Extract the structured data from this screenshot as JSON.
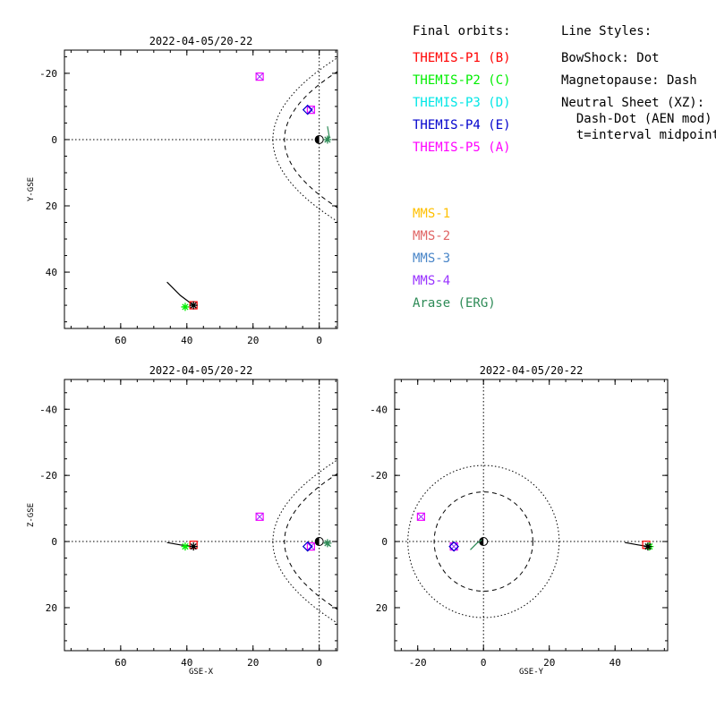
{
  "colors": {
    "themis_p1": "#ff0000",
    "themis_p2": "#00ee00",
    "themis_p3": "#00e6e6",
    "themis_p4": "#0000cc",
    "themis_p5": "#ff00ff",
    "mms_1": "#ffc000",
    "mms_2": "#e06666",
    "mms_3": "#4a86c8",
    "mms_4": "#9933ff",
    "arase": "#2e8b57",
    "black": "#000000"
  },
  "legend": {
    "final_orbits_title": "Final orbits:",
    "line_styles_title": "Line Styles:",
    "themis": [
      {
        "label": "THEMIS-P1 (B)",
        "color": "#ff0000"
      },
      {
        "label": "THEMIS-P2 (C)",
        "color": "#00ee00"
      },
      {
        "label": "THEMIS-P3 (D)",
        "color": "#00e6e6"
      },
      {
        "label": "THEMIS-P4 (E)",
        "color": "#0000cc"
      },
      {
        "label": "THEMIS-P5 (A)",
        "color": "#ff00ff"
      }
    ],
    "mms": [
      {
        "label": "MMS-1",
        "color": "#ffc000"
      },
      {
        "label": "MMS-2",
        "color": "#e06666"
      },
      {
        "label": "MMS-3",
        "color": "#4a86c8"
      },
      {
        "label": "MMS-4",
        "color": "#9933ff"
      },
      {
        "label": "Arase (ERG)",
        "color": "#2e8b57"
      }
    ],
    "line_styles": [
      "BowShock: Dot",
      "Magnetopause: Dash",
      "Neutral Sheet (XZ):",
      "  Dash-Dot (AEN mod)",
      "  t=interval midpoint"
    ]
  },
  "chart_data": [
    {
      "type": "scatter",
      "title": "2022-04-05/20-22",
      "xlabel": "",
      "ylabel": "Y-GSE",
      "xlim": [
        77,
        -5.5
      ],
      "ylim": [
        -27,
        57
      ],
      "xticks": [
        60,
        40,
        20,
        0
      ],
      "yticks": [
        -20,
        0,
        20,
        40
      ],
      "grid": false,
      "points": [
        {
          "name": "THEMIS-P5",
          "x": 18,
          "y": -19,
          "color": "#ff00ff",
          "marker": "square-x"
        },
        {
          "name": "THEMIS-P5",
          "x": 2.5,
          "y": -9,
          "color": "#ff00ff",
          "marker": "square-x"
        },
        {
          "name": "THEMIS-P4",
          "x": 3.5,
          "y": -9,
          "color": "#0000cc",
          "marker": "diamond"
        },
        {
          "name": "THEMIS-P1",
          "x": 38,
          "y": 50,
          "color": "#ff0000",
          "marker": "square"
        },
        {
          "name": "THEMIS-P2",
          "x": 40.5,
          "y": 50.5,
          "color": "#00ee00",
          "marker": "star"
        },
        {
          "name": "THEMIS-P2",
          "x": 38,
          "y": 50,
          "color": "#000000",
          "marker": "star"
        },
        {
          "name": "Arase (ERG)",
          "x": -2.5,
          "y": 0,
          "color": "#2e8b57",
          "marker": "star"
        }
      ],
      "tracks": [
        {
          "name": "track",
          "color": "#000000",
          "points": [
            [
              46,
              43
            ],
            [
              42,
              47
            ],
            [
              38,
              50
            ]
          ]
        },
        {
          "name": "Arase (ERG)",
          "color": "#2e8b57",
          "points": [
            [
              -2.5,
              -4
            ],
            [
              -3,
              -1
            ],
            [
              -2,
              0.5
            ]
          ]
        }
      ]
    },
    {
      "type": "scatter",
      "title": "2022-04-05/20-22",
      "xlabel": "GSE-X",
      "ylabel": "Z-GSE",
      "xlim": [
        77,
        -5.5
      ],
      "ylim": [
        -49,
        33
      ],
      "xticks": [
        60,
        40,
        20,
        0
      ],
      "yticks": [
        -40,
        -20,
        0,
        20
      ],
      "grid": false,
      "points": [
        {
          "name": "THEMIS-P5",
          "x": 18,
          "y": -7.5,
          "color": "#ff00ff",
          "marker": "square-x"
        },
        {
          "name": "THEMIS-P5",
          "x": 2.5,
          "y": 1.5,
          "color": "#ff00ff",
          "marker": "square-x"
        },
        {
          "name": "THEMIS-P4",
          "x": 3.5,
          "y": 1.5,
          "color": "#0000cc",
          "marker": "diamond"
        },
        {
          "name": "THEMIS-P1",
          "x": 38,
          "y": 1,
          "color": "#ff0000",
          "marker": "square"
        },
        {
          "name": "THEMIS-P2",
          "x": 40.5,
          "y": 1.5,
          "color": "#00ee00",
          "marker": "star"
        },
        {
          "name": "THEMIS-P2",
          "x": 38,
          "y": 1.5,
          "color": "#000000",
          "marker": "star"
        },
        {
          "name": "Arase (ERG)",
          "x": -2.5,
          "y": 0.5,
          "color": "#2e8b57",
          "marker": "star"
        }
      ],
      "tracks": [
        {
          "name": "track",
          "color": "#000000",
          "points": [
            [
              46,
              0.3
            ],
            [
              42,
              1
            ],
            [
              38,
              1.5
            ]
          ]
        },
        {
          "name": "Arase (ERG)",
          "color": "#2e8b57",
          "points": [
            [
              -3.5,
              1.5
            ],
            [
              -2.5,
              0.8
            ],
            [
              -1.5,
              0.2
            ]
          ]
        }
      ]
    },
    {
      "type": "scatter",
      "title": "2022-04-05/20-22",
      "xlabel": "GSE-Y",
      "ylabel": "",
      "xlim": [
        -27,
        56
      ],
      "ylim": [
        -49,
        33
      ],
      "xticks": [
        -20,
        0,
        20,
        40
      ],
      "yticks": [
        -40,
        -20,
        0,
        20
      ],
      "grid": false,
      "points": [
        {
          "name": "THEMIS-P5",
          "x": -19,
          "y": -7.5,
          "color": "#ff00ff",
          "marker": "square-x"
        },
        {
          "name": "THEMIS-P5",
          "x": -9,
          "y": 1.5,
          "color": "#ff00ff",
          "marker": "square-x"
        },
        {
          "name": "THEMIS-P4",
          "x": -9,
          "y": 1.5,
          "color": "#0000cc",
          "marker": "diamond"
        },
        {
          "name": "THEMIS-P1",
          "x": 49.5,
          "y": 1,
          "color": "#ff0000",
          "marker": "square"
        },
        {
          "name": "THEMIS-P2",
          "x": 50.5,
          "y": 1.5,
          "color": "#00ee00",
          "marker": "star"
        },
        {
          "name": "THEMIS-P2",
          "x": 50,
          "y": 1.5,
          "color": "#000000",
          "marker": "star"
        }
      ],
      "tracks": [
        {
          "name": "track",
          "color": "#000000",
          "points": [
            [
              43,
              0.3
            ],
            [
              47,
              1
            ],
            [
              50,
              1.5
            ]
          ]
        },
        {
          "name": "Arase (ERG)",
          "color": "#2e8b57",
          "points": [
            [
              -4,
              2.5
            ],
            [
              -2,
              0.5
            ],
            [
              -0.5,
              -0.5
            ]
          ]
        }
      ],
      "circles": [
        {
          "name": "bow-shock",
          "r": 23,
          "style": "dot"
        },
        {
          "name": "magnetopause",
          "r": 15,
          "style": "dash"
        }
      ]
    }
  ]
}
